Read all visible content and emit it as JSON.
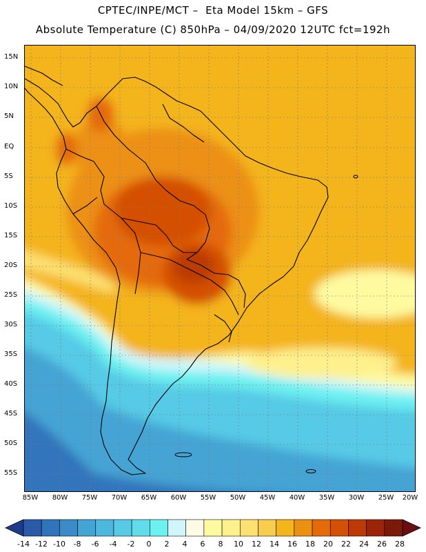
{
  "header": {
    "line1": "CPTEC/INPE/MCT –  Eta Model 15km – GFS",
    "line2": "Absolute Temperature (C) 850hPa – 04/09/2020 12UTC fct=192h"
  },
  "map": {
    "lat_labels": [
      "15N",
      "10N",
      "5N",
      "EQ",
      "5S",
      "10S",
      "15S",
      "20S",
      "25S",
      "30S",
      "35S",
      "40S",
      "45S",
      "50S",
      "55S"
    ],
    "lon_labels": [
      "85W",
      "80W",
      "75W",
      "70W",
      "65W",
      "60W",
      "55W",
      "50W",
      "45W",
      "40W",
      "35W",
      "30W",
      "25W",
      "20W"
    ],
    "colors": {
      "land_outline": "#000000",
      "grid": "#7a7a7a"
    }
  },
  "colorbar": {
    "min_label": "-14",
    "labels": [
      "-14",
      "-12",
      "-10",
      "-8",
      "-6",
      "-4",
      "-2",
      "0",
      "2",
      "4",
      "6",
      "8",
      "10",
      "12",
      "14",
      "16",
      "18",
      "20",
      "22",
      "24",
      "26",
      "28"
    ],
    "colors": [
      "#1e3c8c",
      "#2a5aa8",
      "#3274bc",
      "#3a8cc8",
      "#44a4d4",
      "#4cb8de",
      "#56cae6",
      "#60dcea",
      "#6cf0f0",
      "#d0f6fa",
      "#fefae6",
      "#fefaa0",
      "#fef08c",
      "#fce070",
      "#f8cc4c",
      "#f4b41c",
      "#ec9014",
      "#e46a0a",
      "#d45006",
      "#bc3a06",
      "#9c2408",
      "#7c1a0a",
      "#6a0e14"
    ]
  }
}
